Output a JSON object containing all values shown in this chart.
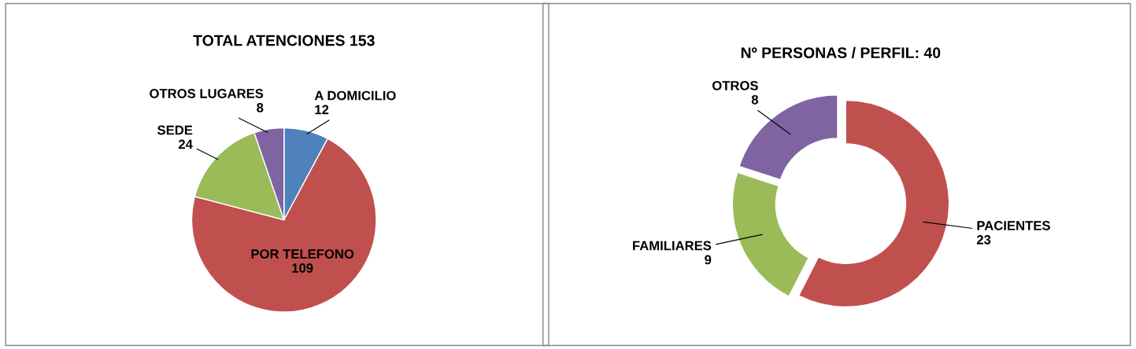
{
  "chart_data": [
    {
      "type": "pie",
      "title": "TOTAL ATENCIONES 153",
      "categories": [
        "A DOMICILIO",
        "POR TELEFONO",
        "SEDE",
        "OTROS LUGARES"
      ],
      "values": [
        12,
        109,
        24,
        8
      ],
      "colors": [
        "#4f81bd",
        "#c0504d",
        "#9bbb59",
        "#8064a2"
      ],
      "data_labels": true,
      "legend": false
    },
    {
      "type": "donut",
      "title": "Nº PERSONAS / PERFIL: 40",
      "categories": [
        "PACIENTES",
        "FAMILIARES",
        "OTROS"
      ],
      "values": [
        23,
        9,
        8
      ],
      "colors": [
        "#c0504d",
        "#9bbb59",
        "#8064a2"
      ],
      "data_labels": true,
      "legend": false
    }
  ]
}
